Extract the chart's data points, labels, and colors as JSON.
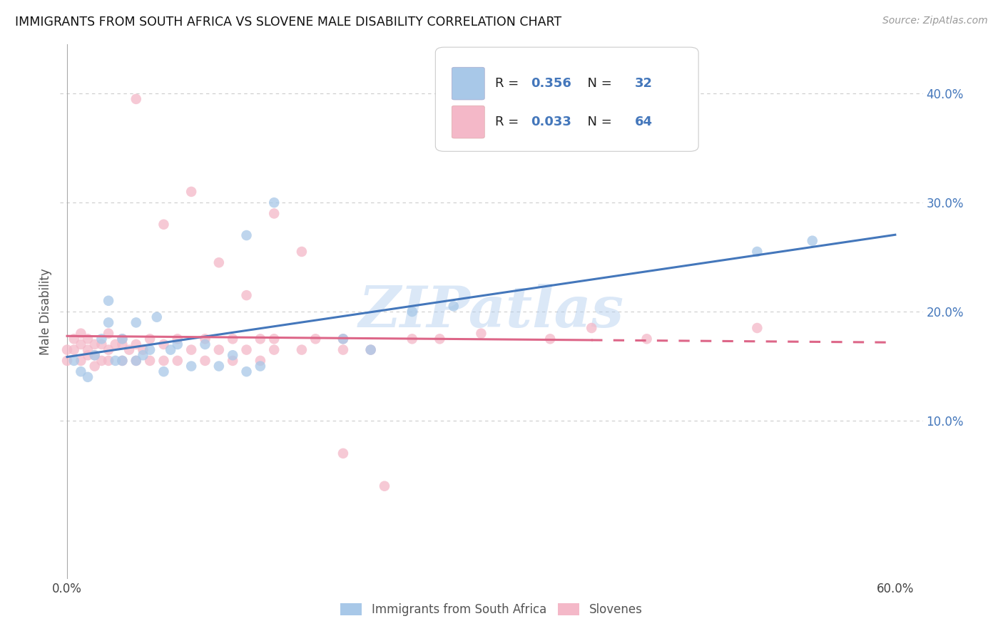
{
  "title": "IMMIGRANTS FROM SOUTH AFRICA VS SLOVENE MALE DISABILITY CORRELATION CHART",
  "source": "Source: ZipAtlas.com",
  "ylabel": "Male Disability",
  "xlim": [
    -0.005,
    0.62
  ],
  "ylim": [
    -0.045,
    0.445
  ],
  "x_ticks": [
    0.0,
    0.1,
    0.2,
    0.3,
    0.4,
    0.5,
    0.6
  ],
  "x_tick_labels": [
    "0.0%",
    "",
    "",
    "",
    "",
    "",
    "60.0%"
  ],
  "y_ticks_right": [
    0.1,
    0.2,
    0.3,
    0.4
  ],
  "y_tick_labels_right": [
    "10.0%",
    "20.0%",
    "30.0%",
    "40.0%"
  ],
  "legend_line1": [
    "R = 0.356",
    "N = 32"
  ],
  "legend_line2": [
    "R = 0.033",
    "N = 64"
  ],
  "legend_label1": "Immigrants from South Africa",
  "legend_label2": "Slovenes",
  "color_blue": "#a8c8e8",
  "color_pink": "#f4b8c8",
  "color_blue_line": "#4477bb",
  "color_pink_line": "#dd6688",
  "color_blue_dark": "#4477bb",
  "watermark": "ZIPatlas",
  "background_color": "#ffffff",
  "grid_color": "#cccccc",
  "blue_x": [
    0.005,
    0.01,
    0.015,
    0.02,
    0.025,
    0.03,
    0.03,
    0.035,
    0.04,
    0.04,
    0.05,
    0.05,
    0.055,
    0.06,
    0.065,
    0.07,
    0.075,
    0.08,
    0.09,
    0.1,
    0.11,
    0.12,
    0.13,
    0.14,
    0.2,
    0.22,
    0.25,
    0.28,
    0.13,
    0.15,
    0.5,
    0.54
  ],
  "blue_y": [
    0.155,
    0.145,
    0.14,
    0.16,
    0.175,
    0.19,
    0.21,
    0.155,
    0.155,
    0.175,
    0.155,
    0.19,
    0.16,
    0.165,
    0.195,
    0.145,
    0.165,
    0.17,
    0.15,
    0.17,
    0.15,
    0.16,
    0.145,
    0.15,
    0.175,
    0.165,
    0.2,
    0.205,
    0.27,
    0.3,
    0.255,
    0.265
  ],
  "pink_x": [
    0.0,
    0.0,
    0.005,
    0.005,
    0.01,
    0.01,
    0.01,
    0.015,
    0.015,
    0.015,
    0.02,
    0.02,
    0.02,
    0.025,
    0.025,
    0.03,
    0.03,
    0.03,
    0.035,
    0.04,
    0.04,
    0.04,
    0.045,
    0.05,
    0.05,
    0.055,
    0.06,
    0.06,
    0.07,
    0.07,
    0.08,
    0.08,
    0.09,
    0.1,
    0.1,
    0.11,
    0.12,
    0.12,
    0.13,
    0.14,
    0.14,
    0.15,
    0.15,
    0.17,
    0.18,
    0.2,
    0.2,
    0.22,
    0.25,
    0.27,
    0.3,
    0.35,
    0.38,
    0.42,
    0.5,
    0.05,
    0.07,
    0.09,
    0.11,
    0.13,
    0.15,
    0.17,
    0.2,
    0.23
  ],
  "pink_y": [
    0.155,
    0.165,
    0.165,
    0.175,
    0.155,
    0.17,
    0.18,
    0.16,
    0.165,
    0.175,
    0.15,
    0.16,
    0.17,
    0.155,
    0.17,
    0.155,
    0.165,
    0.18,
    0.17,
    0.155,
    0.17,
    0.175,
    0.165,
    0.155,
    0.17,
    0.165,
    0.155,
    0.175,
    0.155,
    0.17,
    0.155,
    0.175,
    0.165,
    0.155,
    0.175,
    0.165,
    0.155,
    0.175,
    0.165,
    0.155,
    0.175,
    0.165,
    0.175,
    0.165,
    0.175,
    0.165,
    0.175,
    0.165,
    0.175,
    0.175,
    0.18,
    0.175,
    0.185,
    0.175,
    0.185,
    0.395,
    0.28,
    0.31,
    0.245,
    0.215,
    0.29,
    0.255,
    0.07,
    0.04
  ]
}
